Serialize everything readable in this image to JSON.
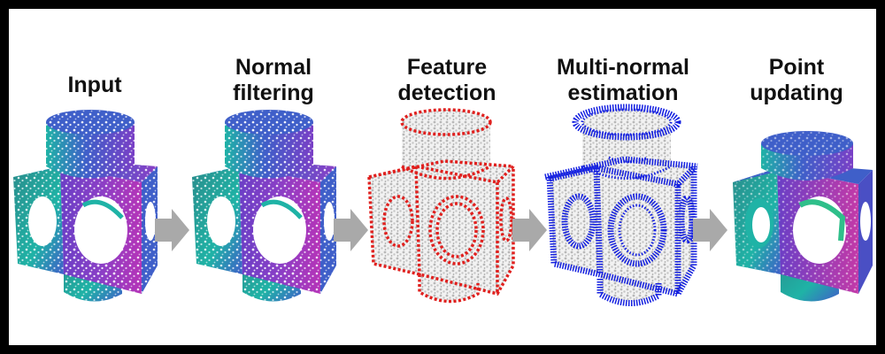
{
  "stages": [
    {
      "id": "input",
      "lines": [
        "Input"
      ]
    },
    {
      "id": "normal-filtering",
      "lines": [
        "Normal",
        "filtering"
      ]
    },
    {
      "id": "feature-detection",
      "lines": [
        "Feature",
        "detection"
      ]
    },
    {
      "id": "multi-normal-estimation",
      "lines": [
        "Multi-normal",
        "estimation"
      ]
    },
    {
      "id": "point-updating",
      "lines": [
        "Point",
        "updating"
      ]
    }
  ],
  "colors": {
    "background": "#000000",
    "panel": "#ffffff",
    "arrow": "#a9a9a9",
    "points_cyan": "#1fb3a6",
    "points_teal": "#2a8d8c",
    "points_blue": "#3f5fc9",
    "points_purple": "#8a3fc6",
    "points_magenta": "#b534b8",
    "points_gray": "#c8c8c8",
    "feature_red": "#e0201e",
    "normal_blue": "#1420e0"
  }
}
